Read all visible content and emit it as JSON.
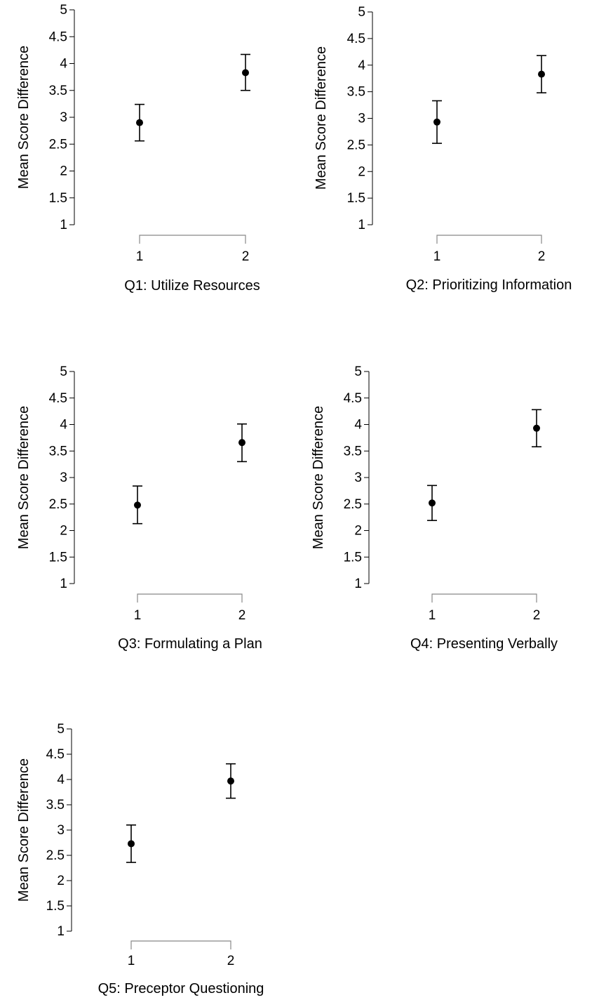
{
  "chart_data": [
    {
      "type": "scatter",
      "title": "",
      "xlabel": "Q1: Utilize Resources",
      "ylabel": "Mean Score Difference",
      "categories": [
        "1",
        "2"
      ],
      "ylim": [
        1,
        5
      ],
      "yticks": [
        "1",
        "1.5",
        "2",
        "2.5",
        "3",
        "3.5",
        "4",
        "4.5",
        "5"
      ],
      "grid": false,
      "points": [
        {
          "x": "1",
          "y": 2.9,
          "low": 2.56,
          "high": 3.24
        },
        {
          "x": "2",
          "y": 3.83,
          "low": 3.5,
          "high": 4.17
        }
      ]
    },
    {
      "type": "scatter",
      "title": "",
      "xlabel": "Q2: Prioritizing Information",
      "ylabel": "Mean Score Difference",
      "categories": [
        "1",
        "2"
      ],
      "ylim": [
        1,
        5
      ],
      "yticks": [
        "1",
        "1.5",
        "2",
        "2.5",
        "3",
        "3.5",
        "4",
        "4.5",
        "5"
      ],
      "grid": false,
      "points": [
        {
          "x": "1",
          "y": 2.93,
          "low": 2.53,
          "high": 3.33
        },
        {
          "x": "2",
          "y": 3.83,
          "low": 3.48,
          "high": 4.18
        }
      ]
    },
    {
      "type": "scatter",
      "title": "",
      "xlabel": "Q3: Formulating a Plan",
      "ylabel": "Mean Score Difference",
      "categories": [
        "1",
        "2"
      ],
      "ylim": [
        1,
        5
      ],
      "yticks": [
        "1",
        "1.5",
        "2",
        "2.5",
        "3",
        "3.5",
        "4",
        "4.5",
        "5"
      ],
      "grid": false,
      "points": [
        {
          "x": "1",
          "y": 2.48,
          "low": 2.13,
          "high": 2.84
        },
        {
          "x": "2",
          "y": 3.66,
          "low": 3.3,
          "high": 4.01
        }
      ]
    },
    {
      "type": "scatter",
      "title": "",
      "xlabel": "Q4: Presenting Verbally",
      "ylabel": "Mean Score Difference",
      "categories": [
        "1",
        "2"
      ],
      "ylim": [
        1,
        5
      ],
      "yticks": [
        "1",
        "1.5",
        "2",
        "2.5",
        "3",
        "3.5",
        "4",
        "4.5",
        "5"
      ],
      "grid": false,
      "points": [
        {
          "x": "1",
          "y": 2.52,
          "low": 2.19,
          "high": 2.85
        },
        {
          "x": "2",
          "y": 3.93,
          "low": 3.58,
          "high": 4.28
        }
      ]
    },
    {
      "type": "scatter",
      "title": "",
      "xlabel": "Q5: Preceptor Questioning",
      "ylabel": "Mean Score Difference",
      "categories": [
        "1",
        "2"
      ],
      "ylim": [
        1,
        5
      ],
      "yticks": [
        "1",
        "1.5",
        "2",
        "2.5",
        "3",
        "3.5",
        "4",
        "4.5",
        "5"
      ],
      "grid": false,
      "points": [
        {
          "x": "1",
          "y": 2.73,
          "low": 2.36,
          "high": 3.1
        },
        {
          "x": "2",
          "y": 3.97,
          "low": 3.63,
          "high": 4.31
        }
      ]
    }
  ]
}
